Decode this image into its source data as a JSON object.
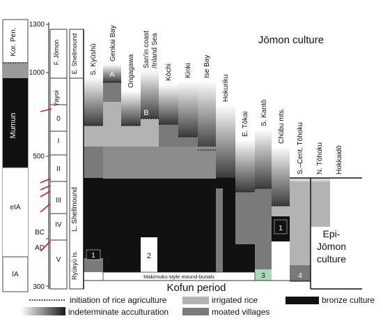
{
  "header": {
    "left_col_label": "Kor. Pen.",
    "shellmound_label": "E. Shellmound",
    "f_jomon_label": "F. Jōmon",
    "jomon_culture": "Jōmon culture"
  },
  "axis": {
    "ticks": [
      "1300",
      "1000",
      "500",
      "BC",
      "AD",
      "300"
    ]
  },
  "korea_column": {
    "mumun": "Mumun",
    "eia": "eIA",
    "ia": "IA"
  },
  "phase_column": {
    "yayoi": "Yayoi",
    "l_shellmound": "L. Shellmound",
    "ryukyu": "Ryūkyū Is.",
    "phases": [
      "0",
      "I",
      "II",
      "III",
      "IV",
      "V"
    ]
  },
  "regions": [
    "S. Kyūshū",
    "Genkai Bay",
    "Ongagawa",
    "San'in coast /Inland Sea",
    "Kōchi",
    "Kinki",
    "Ise Bay",
    "Hokuriku",
    "E. Tōkai",
    "S. Kantō",
    "Chūbu mts.",
    "S.–Cent. Tōhoku",
    "N. Tōhoku",
    "Hokkaidō"
  ],
  "markers": {
    "a": "A",
    "b": "B",
    "n1_left": "1",
    "n2": "2",
    "n3": "3",
    "n4": "4",
    "n1_right": "1"
  },
  "epi_jomon": {
    "line1": "Epi-",
    "line2": "Jōmon",
    "line3": "culture"
  },
  "makimuku": "Makimuku-style mound-burials",
  "kofun": "Kofun period",
  "legend": {
    "initiation": "initiation of rice agriculture",
    "irrigated": "irrigated rice",
    "bronze": "bronze culture",
    "indeterminate": "indeterminate acculturation",
    "moated": "moated villages"
  },
  "colors": {
    "bronze": "#111111",
    "moated": "#7a7a7a",
    "irrigated": "#b3b3b3",
    "makimuku_box": "#a9d9b9",
    "red_tick": "#d32020"
  }
}
